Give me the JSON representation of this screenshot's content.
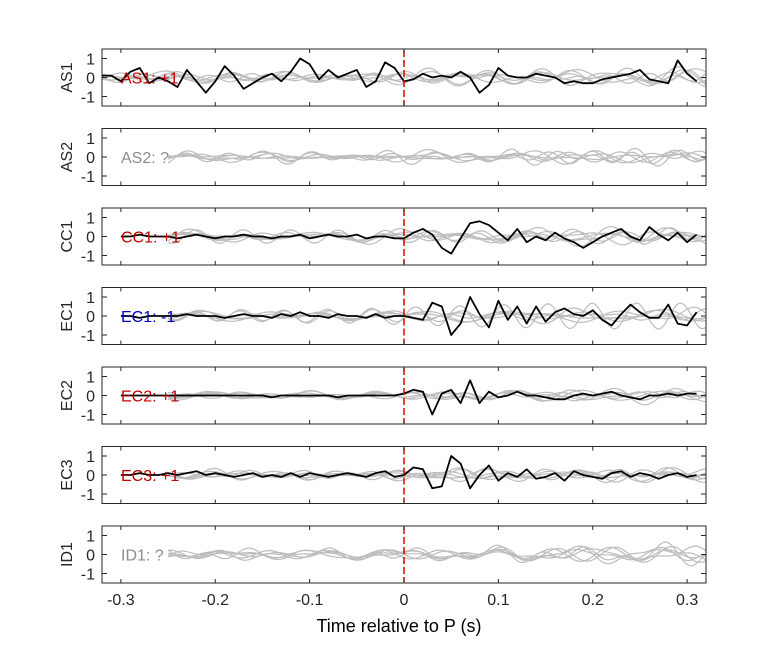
{
  "figure": {
    "xlabel": "Time relative to P (s)"
  },
  "chart_data": {
    "type": "line",
    "xlim": [
      -0.32,
      0.32
    ],
    "ylim": [
      -1.5,
      1.5
    ],
    "x_ticks": [
      -0.3,
      -0.2,
      -0.1,
      0,
      0.1,
      0.2,
      0.3
    ],
    "x_tick_labels": [
      "-0.3",
      "-0.2",
      "-0.1",
      "0",
      "0.1",
      "0.2",
      "0.3"
    ],
    "y_ticks": [
      -1,
      0,
      1
    ],
    "y_tick_labels": [
      "-1",
      "0",
      "1"
    ],
    "marker_time": 0,
    "colors": {
      "positive": "#c00000",
      "negative": "#0000c0",
      "unknown": "#8c8c8c",
      "trace": "#000000",
      "background_traces": "#bdbdbd",
      "marker": "#e00000"
    },
    "panels": [
      {
        "ylabel": "AS1",
        "annotation": "AS1: +1",
        "polarity": "positive",
        "trace_x": [
          -0.32,
          -0.31,
          -0.3,
          -0.29,
          -0.28,
          -0.27,
          -0.26,
          -0.25,
          -0.24,
          -0.23,
          -0.22,
          -0.21,
          -0.2,
          -0.19,
          -0.18,
          -0.17,
          -0.16,
          -0.15,
          -0.14,
          -0.13,
          -0.12,
          -0.11,
          -0.1,
          -0.09,
          -0.08,
          -0.07,
          -0.06,
          -0.05,
          -0.04,
          -0.03,
          -0.02,
          -0.01,
          0.0,
          0.01,
          0.02,
          0.03,
          0.04,
          0.05,
          0.06,
          0.07,
          0.08,
          0.09,
          0.1,
          0.11,
          0.12,
          0.13,
          0.14,
          0.15,
          0.16,
          0.17,
          0.18,
          0.19,
          0.2,
          0.21,
          0.22,
          0.23,
          0.24,
          0.25,
          0.26,
          0.27,
          0.28,
          0.29,
          0.3,
          0.31
        ],
        "trace_y": [
          0.1,
          0.1,
          -0.2,
          0.3,
          0.5,
          -0.3,
          0.0,
          -0.2,
          -0.5,
          0.4,
          -0.2,
          -0.8,
          -0.2,
          0.6,
          0.1,
          -0.6,
          -0.3,
          0.0,
          0.2,
          -0.2,
          0.3,
          1.0,
          0.7,
          -0.1,
          0.4,
          0.0,
          0.2,
          0.4,
          -0.5,
          -0.2,
          0.8,
          0.5,
          -0.2,
          -0.1,
          0.2,
          0.0,
          0.1,
          0.0,
          0.3,
          0.0,
          -0.8,
          -0.4,
          0.5,
          0.1,
          0.0,
          0.0,
          0.2,
          0.1,
          0.0,
          -0.3,
          -0.2,
          -0.3,
          -0.3,
          -0.1,
          0.0,
          0.1,
          0.2,
          0.4,
          -0.1,
          -0.2,
          -0.3,
          0.9,
          0.2,
          -0.2
        ],
        "background_start": -0.32
      },
      {
        "ylabel": "AS2",
        "annotation": "AS2: ?",
        "polarity": "unknown",
        "trace_x": [],
        "trace_y": [],
        "background_start": -0.25
      },
      {
        "ylabel": "CC1",
        "annotation": "CC1: +1",
        "polarity": "positive",
        "trace_x": [
          -0.3,
          -0.29,
          -0.28,
          -0.27,
          -0.26,
          -0.25,
          -0.24,
          -0.23,
          -0.22,
          -0.21,
          -0.2,
          -0.19,
          -0.18,
          -0.17,
          -0.16,
          -0.15,
          -0.14,
          -0.13,
          -0.12,
          -0.11,
          -0.1,
          -0.09,
          -0.08,
          -0.07,
          -0.06,
          -0.05,
          -0.04,
          -0.03,
          -0.02,
          -0.01,
          0.0,
          0.01,
          0.02,
          0.03,
          0.04,
          0.05,
          0.06,
          0.07,
          0.08,
          0.09,
          0.1,
          0.11,
          0.12,
          0.13,
          0.14,
          0.15,
          0.16,
          0.17,
          0.18,
          0.19,
          0.2,
          0.21,
          0.22,
          0.23,
          0.24,
          0.25,
          0.26,
          0.27,
          0.28,
          0.29,
          0.3,
          0.31
        ],
        "trace_y": [
          0.0,
          0.0,
          0.1,
          0.0,
          0.0,
          0.0,
          -0.1,
          0.0,
          0.1,
          0.0,
          -0.1,
          0.0,
          0.0,
          0.1,
          0.0,
          0.0,
          -0.1,
          0.0,
          0.0,
          0.1,
          -0.1,
          0.0,
          0.1,
          0.0,
          0.0,
          0.1,
          -0.1,
          0.0,
          0.0,
          -0.1,
          -0.1,
          0.2,
          0.4,
          0.1,
          -0.6,
          -0.9,
          -0.1,
          0.7,
          0.8,
          0.6,
          0.2,
          -0.2,
          0.4,
          -0.3,
          0.0,
          -0.2,
          0.2,
          -0.1,
          -0.3,
          -0.6,
          -0.3,
          0.0,
          0.2,
          0.4,
          0.0,
          -0.2,
          0.5,
          0.1,
          -0.2,
          0.2,
          -0.3,
          0.1
        ],
        "background_start": -0.25
      },
      {
        "ylabel": "EC1",
        "annotation": "EC1: -1",
        "polarity": "negative",
        "trace_x": [
          -0.3,
          -0.29,
          -0.28,
          -0.27,
          -0.26,
          -0.25,
          -0.24,
          -0.23,
          -0.22,
          -0.21,
          -0.2,
          -0.19,
          -0.18,
          -0.17,
          -0.16,
          -0.15,
          -0.14,
          -0.13,
          -0.12,
          -0.11,
          -0.1,
          -0.09,
          -0.08,
          -0.07,
          -0.06,
          -0.05,
          -0.04,
          -0.03,
          -0.02,
          -0.01,
          0.0,
          0.01,
          0.02,
          0.03,
          0.04,
          0.05,
          0.06,
          0.07,
          0.08,
          0.09,
          0.1,
          0.11,
          0.12,
          0.13,
          0.14,
          0.15,
          0.16,
          0.17,
          0.18,
          0.19,
          0.2,
          0.21,
          0.22,
          0.23,
          0.24,
          0.25,
          0.26,
          0.27,
          0.28,
          0.29,
          0.3,
          0.31
        ],
        "trace_y": [
          0.0,
          0.0,
          -0.1,
          0.0,
          0.0,
          0.0,
          0.0,
          0.1,
          0.0,
          0.0,
          0.0,
          -0.1,
          0.0,
          0.1,
          0.0,
          0.0,
          -0.1,
          0.1,
          0.0,
          0.2,
          0.0,
          0.0,
          -0.1,
          0.1,
          0.0,
          0.0,
          -0.1,
          0.1,
          -0.1,
          0.0,
          0.0,
          -0.1,
          -0.2,
          0.7,
          0.5,
          -1.0,
          -0.4,
          1.0,
          0.1,
          -0.6,
          0.8,
          -0.2,
          0.5,
          -0.4,
          0.5,
          -0.3,
          0.2,
          0.4,
          0.1,
          0.0,
          0.3,
          -0.2,
          -0.5,
          0.1,
          0.6,
          0.2,
          -0.1,
          -0.1,
          0.6,
          -0.4,
          -0.5,
          0.2
        ],
        "background_start": -0.25
      },
      {
        "ylabel": "EC2",
        "annotation": "EC2: +1",
        "polarity": "positive",
        "trace_x": [
          -0.3,
          -0.29,
          -0.28,
          -0.27,
          -0.26,
          -0.25,
          -0.24,
          -0.23,
          -0.22,
          -0.21,
          -0.2,
          -0.19,
          -0.18,
          -0.17,
          -0.16,
          -0.15,
          -0.14,
          -0.13,
          -0.12,
          -0.11,
          -0.1,
          -0.09,
          -0.08,
          -0.07,
          -0.06,
          -0.05,
          -0.04,
          -0.03,
          -0.02,
          -0.01,
          0.0,
          0.01,
          0.02,
          0.03,
          0.04,
          0.05,
          0.06,
          0.07,
          0.08,
          0.09,
          0.1,
          0.11,
          0.12,
          0.13,
          0.14,
          0.15,
          0.16,
          0.17,
          0.18,
          0.19,
          0.2,
          0.21,
          0.22,
          0.23,
          0.24,
          0.25,
          0.26,
          0.27,
          0.28,
          0.29,
          0.3,
          0.31
        ],
        "trace_y": [
          0.0,
          0.0,
          0.0,
          0.0,
          0.0,
          0.0,
          0.0,
          0.0,
          0.0,
          0.0,
          0.0,
          0.0,
          0.0,
          0.0,
          0.0,
          0.0,
          -0.1,
          0.0,
          0.0,
          0.0,
          0.0,
          0.0,
          0.0,
          -0.1,
          0.0,
          0.0,
          0.0,
          0.0,
          0.0,
          0.0,
          0.1,
          0.3,
          0.2,
          -1.0,
          0.1,
          0.3,
          -0.4,
          0.8,
          -0.4,
          0.2,
          -0.1,
          0.0,
          0.2,
          0.0,
          0.0,
          -0.1,
          -0.2,
          -0.2,
          0.0,
          0.1,
          0.0,
          0.1,
          0.2,
          0.0,
          -0.1,
          -0.2,
          0.0,
          0.0,
          0.1,
          0.0,
          0.1,
          0.1
        ],
        "background_start": -0.25
      },
      {
        "ylabel": "EC3",
        "annotation": "EC3: +1",
        "polarity": "positive",
        "trace_x": [
          -0.3,
          -0.29,
          -0.28,
          -0.27,
          -0.26,
          -0.25,
          -0.24,
          -0.23,
          -0.22,
          -0.21,
          -0.2,
          -0.19,
          -0.18,
          -0.17,
          -0.16,
          -0.15,
          -0.14,
          -0.13,
          -0.12,
          -0.11,
          -0.1,
          -0.09,
          -0.08,
          -0.07,
          -0.06,
          -0.05,
          -0.04,
          -0.03,
          -0.02,
          -0.01,
          0.0,
          0.01,
          0.02,
          0.03,
          0.04,
          0.05,
          0.06,
          0.07,
          0.08,
          0.09,
          0.1,
          0.11,
          0.12,
          0.13,
          0.14,
          0.15,
          0.16,
          0.17,
          0.18,
          0.19,
          0.2,
          0.21,
          0.22,
          0.23,
          0.24,
          0.25,
          0.26,
          0.27,
          0.28,
          0.29,
          0.3,
          0.31
        ],
        "trace_y": [
          0.0,
          0.0,
          0.1,
          0.0,
          0.0,
          0.1,
          0.0,
          0.1,
          0.2,
          0.0,
          0.1,
          0.0,
          -0.1,
          0.0,
          0.1,
          -0.1,
          0.0,
          -0.1,
          0.1,
          -0.1,
          0.1,
          0.0,
          -0.1,
          0.0,
          0.1,
          0.0,
          -0.1,
          0.1,
          0.2,
          -0.1,
          0.0,
          0.4,
          0.3,
          -0.7,
          -0.6,
          1.0,
          0.6,
          -0.7,
          0.0,
          0.5,
          -0.3,
          0.1,
          -0.1,
          0.3,
          -0.2,
          -0.1,
          0.1,
          -0.3,
          0.2,
          0.0,
          -0.1,
          -0.2,
          0.1,
          0.2,
          -0.1,
          0.1,
          0.0,
          -0.2,
          0.0,
          0.1,
          -0.1,
          0.0
        ],
        "background_start": -0.25
      },
      {
        "ylabel": "ID1",
        "annotation": "ID1: ?",
        "polarity": "unknown",
        "trace_x": [],
        "trace_y": [],
        "background_start": -0.25
      }
    ]
  }
}
